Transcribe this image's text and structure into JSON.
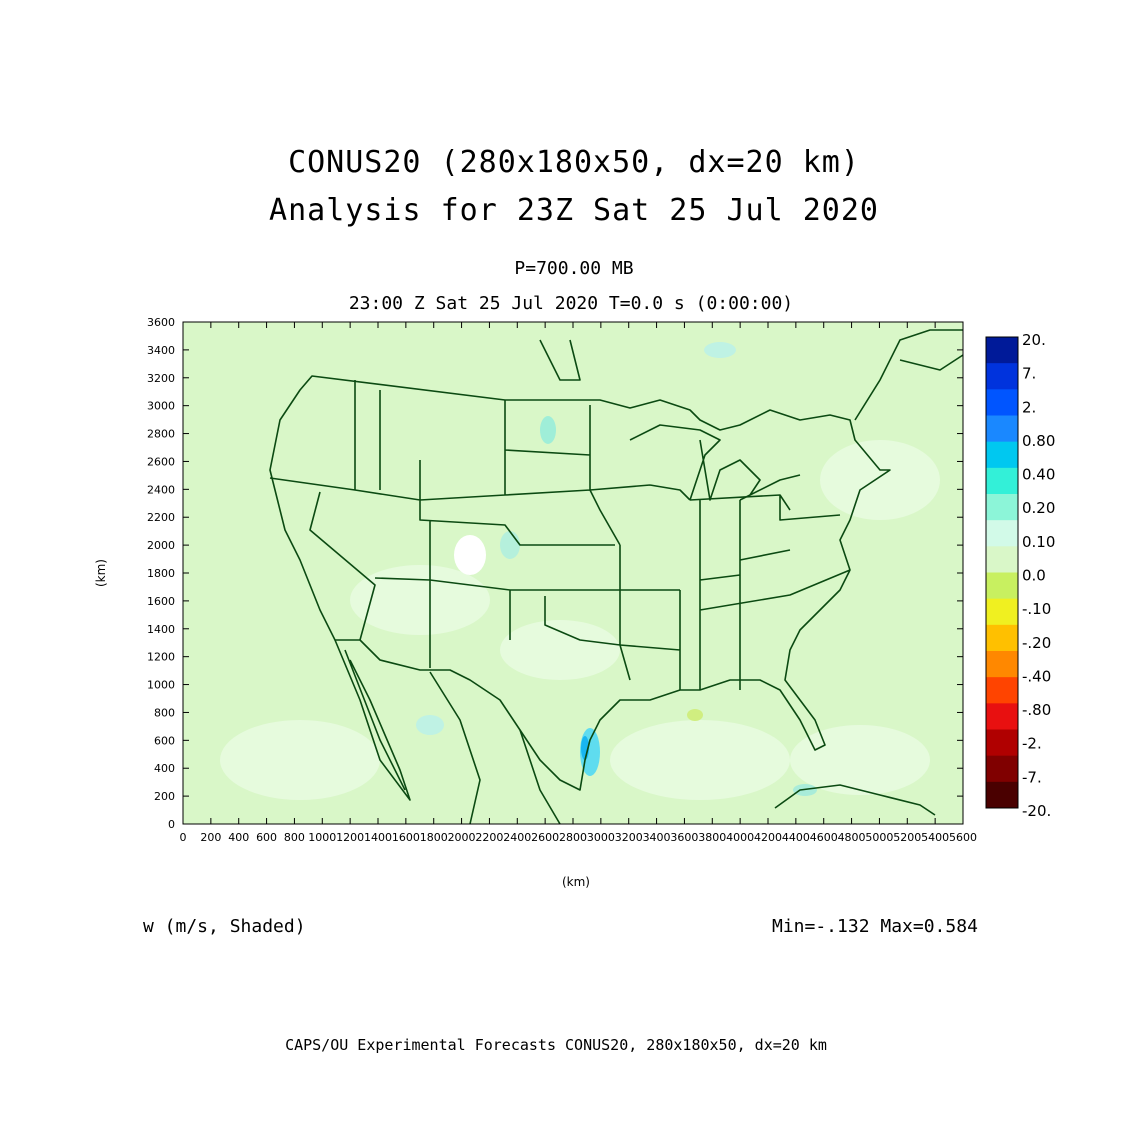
{
  "header": {
    "title_line1": "CONUS20 (280x180x50, dx=20 km)",
    "title_line2": "Analysis for 23Z Sat 25 Jul 2020",
    "level": "P=700.00 MB",
    "time": "23:00 Z Sat 25 Jul 2020    T=0.0 s (0:00:00)"
  },
  "map": {
    "x_axis_label": "(km)",
    "y_axis_label": "(km)",
    "x_ticks": [
      "0",
      "200",
      "400",
      "600",
      "800",
      "1000",
      "1200",
      "1400",
      "1600",
      "1800",
      "2000",
      "2200",
      "2400",
      "2600",
      "2800",
      "3000",
      "3200",
      "3400",
      "3600",
      "3800",
      "4000",
      "4200",
      "4400",
      "4600",
      "4800",
      "5000",
      "5200",
      "5400",
      "5600"
    ],
    "y_ticks": [
      "0",
      "200",
      "400",
      "600",
      "800",
      "1000",
      "1200",
      "1400",
      "1600",
      "1800",
      "2000",
      "2200",
      "2400",
      "2600",
      "2800",
      "3000",
      "3200",
      "3400",
      "3600"
    ],
    "x_range_km": [
      0,
      5600
    ],
    "y_range_km": [
      0,
      3600
    ],
    "background_color": "#d9f7c8",
    "boundary_color": "#0b4a12"
  },
  "colorbar": {
    "labels": [
      "20.",
      "7.",
      "2.",
      "0.80",
      "0.40",
      "0.20",
      "0.10",
      "0.0",
      "-.10",
      "-.20",
      "-.40",
      "-.80",
      "-2.",
      "-7.",
      "-20."
    ],
    "colors": [
      "#001a99",
      "#0033dd",
      "#0055ff",
      "#1a88ff",
      "#00c8f0",
      "#33f0d8",
      "#8cf5d8",
      "#d2fae8",
      "#d9f7c8",
      "#c8f060",
      "#f0f020",
      "#ffc000",
      "#ff8800",
      "#ff4400",
      "#e81010",
      "#b00000",
      "#800000",
      "#4a0000"
    ]
  },
  "footer": {
    "field_label": "w (m/s, Shaded)",
    "min_max": "Min=-.132 Max=0.584",
    "credit": "CAPS/OU Experimental Forecasts  CONUS20, 280x180x50, dx=20 km"
  }
}
